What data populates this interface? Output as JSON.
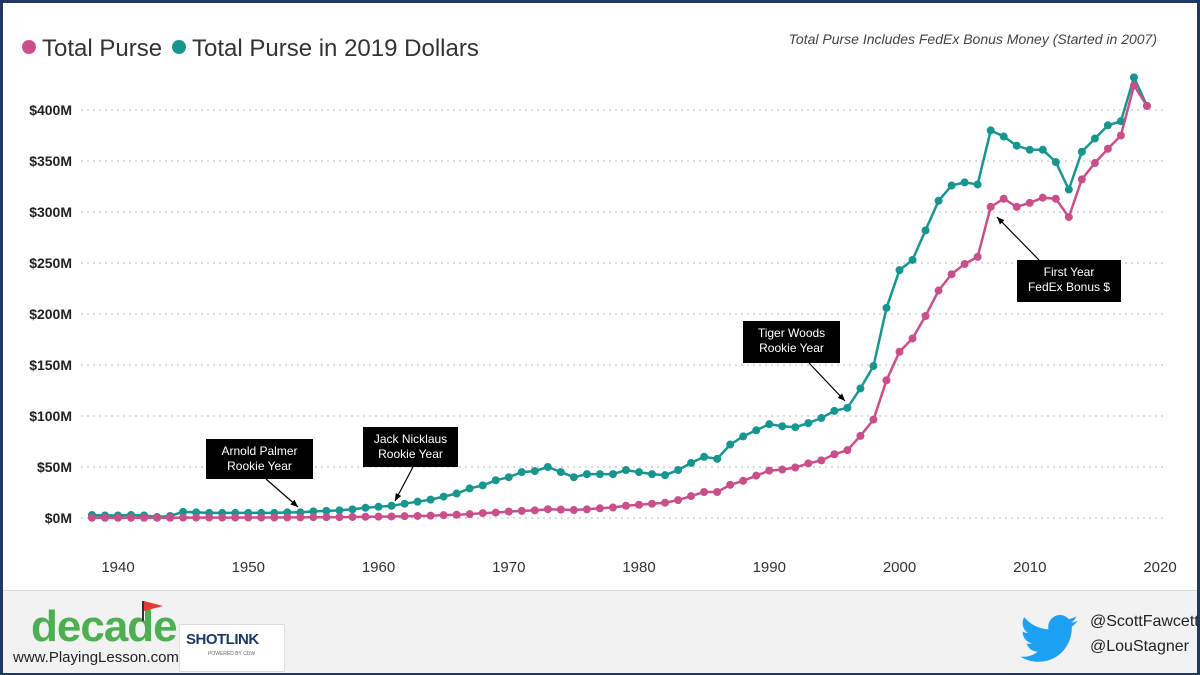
{
  "legend": [
    {
      "label": "Total Purse",
      "color": "#c94f8a"
    },
    {
      "label": "Total Purse in 2019 Dollars",
      "color": "#17958f"
    }
  ],
  "subtitle": "Total Purse Includes FedEx Bonus Money (Started in 2007)",
  "annotations": [
    {
      "lines": [
        "Arnold Palmer",
        "Rookie Year"
      ],
      "target_year": 1955
    },
    {
      "lines": [
        "Jack Nicklaus",
        "Rookie Year"
      ],
      "target_year": 1962
    },
    {
      "lines": [
        "Tiger Woods",
        "Rookie Year"
      ],
      "target_year": 1996
    },
    {
      "lines": [
        "First Year",
        "FedEx Bonus $"
      ],
      "target_year": 2007
    }
  ],
  "footer": {
    "logo_text": "decade",
    "site": "www.PlayingLesson.com",
    "shotlink": "SHOTLINK",
    "shotlink_sub": "POWERED BY CDW",
    "handles": [
      "@ScottFawcett",
      "@LouStagner"
    ]
  },
  "chart_data": {
    "type": "line",
    "title": "",
    "xlabel": "",
    "ylabel": "",
    "xlim": [
      1937,
      2020
    ],
    "ylim": [
      0,
      450
    ],
    "x_ticks": [
      1940,
      1950,
      1960,
      1970,
      1980,
      1990,
      2000,
      2010,
      2020
    ],
    "y_ticks": [
      0,
      50,
      100,
      150,
      200,
      250,
      300,
      350,
      400
    ],
    "y_tick_labels": [
      "$0M",
      "$50M",
      "$100M",
      "$150M",
      "$200M",
      "$250M",
      "$300M",
      "$350M",
      "$400M"
    ],
    "grid": "horizontal dotted",
    "legend_position": "top-left",
    "x": [
      1938,
      1939,
      1940,
      1941,
      1942,
      1943,
      1944,
      1945,
      1946,
      1947,
      1948,
      1949,
      1950,
      1951,
      1952,
      1953,
      1954,
      1955,
      1956,
      1957,
      1958,
      1959,
      1960,
      1961,
      1962,
      1963,
      1964,
      1965,
      1966,
      1967,
      1968,
      1969,
      1970,
      1971,
      1972,
      1973,
      1974,
      1975,
      1976,
      1977,
      1978,
      1979,
      1980,
      1981,
      1982,
      1983,
      1984,
      1985,
      1986,
      1987,
      1988,
      1989,
      1990,
      1991,
      1992,
      1993,
      1994,
      1995,
      1996,
      1997,
      1998,
      1999,
      2000,
      2001,
      2002,
      2003,
      2004,
      2005,
      2006,
      2007,
      2008,
      2009,
      2010,
      2011,
      2012,
      2013,
      2014,
      2015,
      2016,
      2017,
      2018,
      2019
    ],
    "series": [
      {
        "name": "Total Purse",
        "color": "#c94f8a",
        "values": [
          0.2,
          0.2,
          0.2,
          0.2,
          0.2,
          0.2,
          0.2,
          0.4,
          0.4,
          0.4,
          0.4,
          0.4,
          0.5,
          0.5,
          0.5,
          0.6,
          0.6,
          0.8,
          0.8,
          0.8,
          1.0,
          1.2,
          1.3,
          1.5,
          1.8,
          2.0,
          2.3,
          2.8,
          3.2,
          3.8,
          4.8,
          5.3,
          6.3,
          7.0,
          7.5,
          8.6,
          8.2,
          7.8,
          8.5,
          9.5,
          10.3,
          12.0,
          13.0,
          14.0,
          15.0,
          17.5,
          21.5,
          25.5,
          25.5,
          32.5,
          36.5,
          41.5,
          46.5,
          47.5,
          49.5,
          53.5,
          56.5,
          62.5,
          66.5,
          80.5,
          96.5,
          135.0,
          163.0,
          176.0,
          198.0,
          223.0,
          239.0,
          249.0,
          256.0,
          305.0,
          313.0,
          305.0,
          309.0,
          314.0,
          313.0,
          295.0,
          332.0,
          348.0,
          362.0,
          375.0,
          424.0,
          404.0
        ]
      },
      {
        "name": "Total Purse in 2019 Dollars",
        "color": "#17958f",
        "values": [
          3.0,
          2.5,
          2.5,
          3.0,
          2.5,
          1.0,
          2.0,
          6.0,
          5.5,
          5.0,
          5.0,
          5.0,
          5.0,
          5.0,
          5.0,
          5.5,
          5.5,
          6.5,
          7.0,
          7.5,
          8.5,
          10.0,
          11.0,
          12.0,
          14.0,
          16.0,
          18.0,
          21.0,
          24.0,
          29.0,
          32.0,
          37.0,
          40.0,
          45.0,
          46.0,
          50.0,
          45.0,
          40.0,
          43.0,
          43.0,
          43.0,
          47.0,
          45.0,
          43.0,
          42.0,
          47.0,
          54.0,
          60.0,
          58.0,
          72.0,
          80.0,
          86.0,
          92.0,
          90.0,
          89.0,
          93.0,
          98.0,
          105.0,
          108.0,
          127.0,
          149.0,
          206.0,
          243.0,
          253.0,
          282.0,
          311.0,
          326.0,
          329.0,
          327.0,
          380.0,
          374.0,
          365.0,
          361.0,
          361.0,
          349.0,
          322.0,
          359.0,
          372.0,
          385.0,
          389.0,
          432.0,
          404.0
        ]
      }
    ]
  }
}
